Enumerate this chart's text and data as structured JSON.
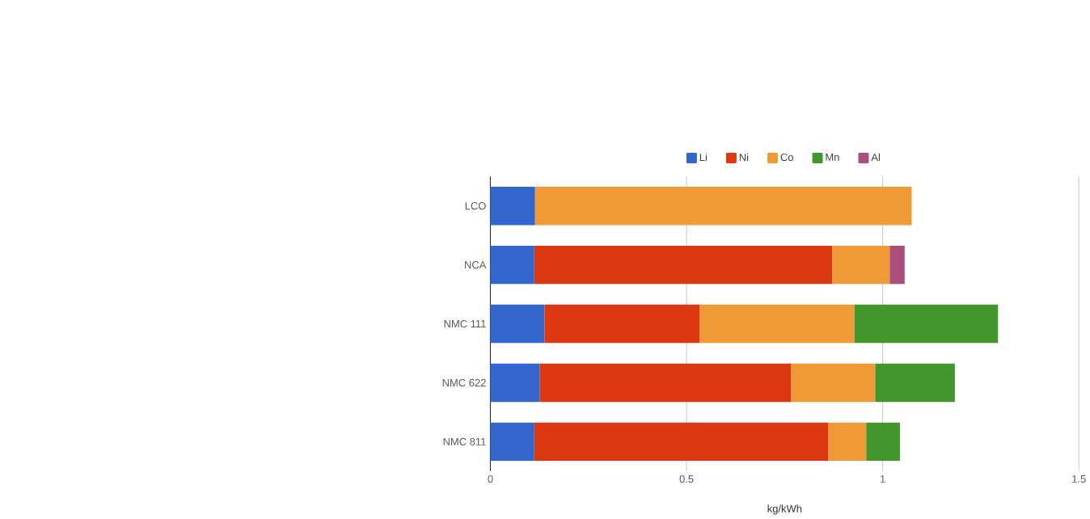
{
  "chart_data": {
    "type": "bar",
    "orientation": "horizontal",
    "stacked": true,
    "xlabel": "kg/kWh",
    "categories": [
      "LCO",
      "NCA",
      "NMC 111",
      "NMC 622",
      "NMC 811"
    ],
    "series": [
      {
        "name": "Li",
        "color": "#3366cc",
        "values": [
          0.114,
          0.112,
          0.138,
          0.126,
          0.112
        ]
      },
      {
        "name": "Ni",
        "color": "#dc3912",
        "values": [
          null,
          0.76,
          0.395,
          0.641,
          0.75
        ]
      },
      {
        "name": "Co",
        "color": "#f09937",
        "values": [
          0.96,
          0.146,
          0.395,
          0.214,
          0.096
        ]
      },
      {
        "name": "Mn",
        "color": "#43962b",
        "values": [
          null,
          null,
          0.366,
          0.203,
          0.086
        ]
      },
      {
        "name": "Al",
        "color": "#ab4e7c",
        "values": [
          null,
          0.038,
          null,
          null,
          null
        ]
      }
    ],
    "xlim": [
      0,
      1.5
    ],
    "xticks": [
      0,
      0.5,
      1,
      1.5
    ],
    "grid": "x",
    "legend": "top"
  }
}
